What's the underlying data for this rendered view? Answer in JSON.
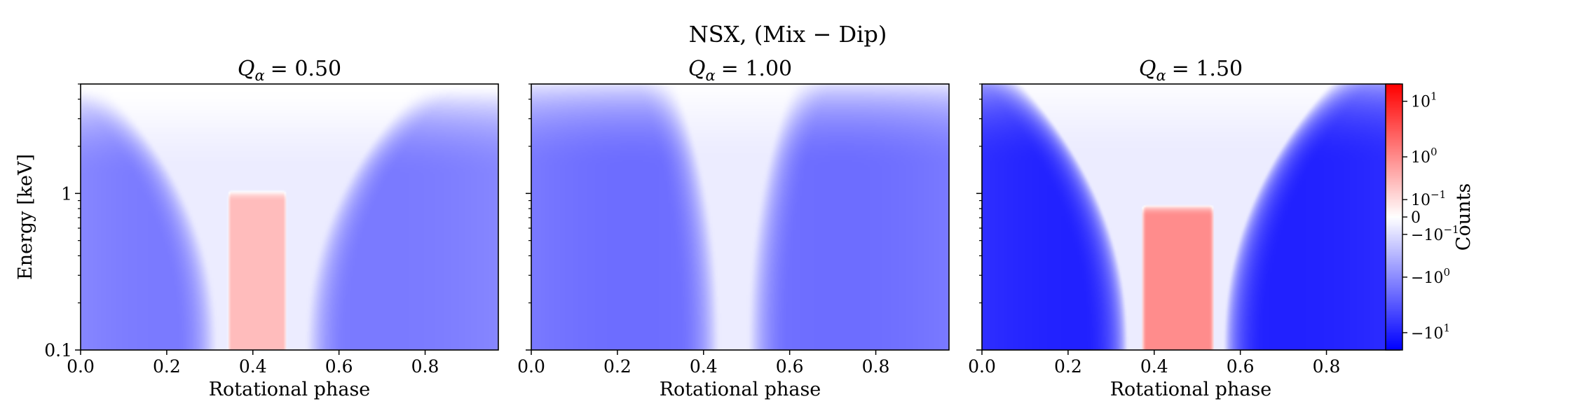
{
  "figure": {
    "suptitle": "NSX, (Mix − Dip)",
    "colorbar": {
      "label": "Counts",
      "scale": "symlog",
      "linthresh": 0.1,
      "range": [
        -20,
        20
      ],
      "ticks": [
        {
          "value": 10,
          "label": "10",
          "exp": "1"
        },
        {
          "value": 1,
          "label": "10",
          "exp": "0"
        },
        {
          "value": 0.1,
          "label": "10",
          "exp": "−1"
        },
        {
          "value": 0,
          "label": "0",
          "exp": ""
        },
        {
          "value": -0.1,
          "label": "−10",
          "exp": "−1"
        },
        {
          "value": -1,
          "label": "−10",
          "exp": "0"
        },
        {
          "value": -10,
          "label": "−10",
          "exp": "1"
        }
      ],
      "colors": {
        "negative": "#0000ff",
        "zero": "#ffffff",
        "positive": "#ff0000"
      }
    }
  },
  "chart_data": [
    {
      "type": "heatmap",
      "title_symbol": "Q",
      "title_subscript": "α",
      "title_value": "= 0.50",
      "xlabel": "Rotational phase",
      "ylabel": "Energy [keV]",
      "xlim": [
        0,
        0.97
      ],
      "ylim": [
        0.1,
        5
      ],
      "yscale": "log",
      "xticks": [
        "0.0",
        "0.2",
        "0.4",
        "0.6",
        "0.8"
      ],
      "yticks": [
        "0.1",
        "1"
      ],
      "features": {
        "positive_peak": {
          "phase_center": 0.41,
          "phase_halfwidth": 0.07,
          "energy_top_keV": 1.0,
          "max_counts": 0.3
        },
        "boundary": {
          "phase_center": 0.42,
          "halfwidth_low_E": 0.12,
          "edge_energy_keV": 3.0
        },
        "negative_min_counts": -1.5
      }
    },
    {
      "type": "heatmap",
      "title_symbol": "Q",
      "title_subscript": "α",
      "title_value": "= 1.00",
      "xlabel": "Rotational phase",
      "ylabel": "",
      "xlim": [
        0,
        0.97
      ],
      "ylim": [
        0.1,
        5
      ],
      "yscale": "log",
      "xticks": [
        "0.0",
        "0.2",
        "0.4",
        "0.6",
        "0.8"
      ],
      "yticks": [],
      "features": {
        "positive_peak": null,
        "boundary": {
          "phase_center": 0.47,
          "halfwidth_low_E": 0.05,
          "edge_energy_keV": 3.5
        },
        "negative_min_counts": -2.0
      }
    },
    {
      "type": "heatmap",
      "title_symbol": "Q",
      "title_subscript": "α",
      "title_value": "= 1.50",
      "xlabel": "Rotational phase",
      "ylabel": "",
      "xlim": [
        0,
        0.97
      ],
      "ylim": [
        0.1,
        5
      ],
      "yscale": "log",
      "xticks": [
        "0.0",
        "0.2",
        "0.4",
        "0.6",
        "0.8"
      ],
      "yticks": [],
      "features": {
        "positive_peak": {
          "phase_center": 0.455,
          "phase_halfwidth": 0.085,
          "energy_top_keV": 0.8,
          "max_counts": 1.0
        },
        "boundary": {
          "phase_center": 0.45,
          "halfwidth_low_E": 0.13,
          "edge_energy_keV": 3.8
        },
        "negative_min_counts": -10
      }
    }
  ]
}
